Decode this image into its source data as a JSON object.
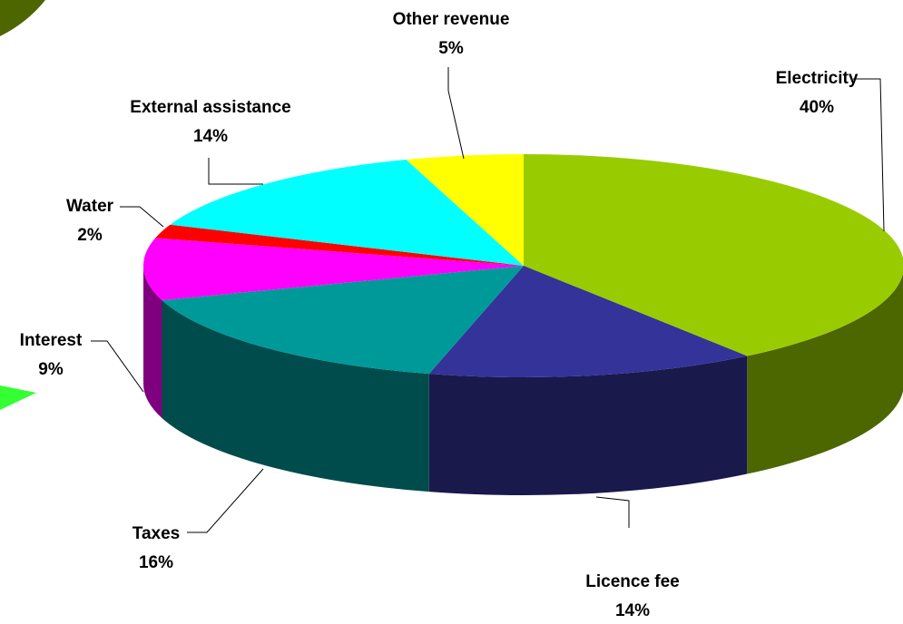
{
  "chart_data": {
    "type": "pie3d",
    "categories": [
      "Electricity",
      "Licence fee",
      "Taxes",
      "Interest",
      "Water",
      "External assistance",
      "Other revenue"
    ],
    "values": [
      40,
      14,
      16,
      9,
      2,
      14,
      5
    ],
    "value_labels": [
      "40%",
      "14%",
      "16%",
      "9%",
      "2%",
      "14%",
      "5%"
    ],
    "colors": [
      "#99cc00",
      "#333399",
      "#009999",
      "#ff00ff",
      "#ff0000",
      "#00ffff",
      "#ffff00"
    ]
  }
}
